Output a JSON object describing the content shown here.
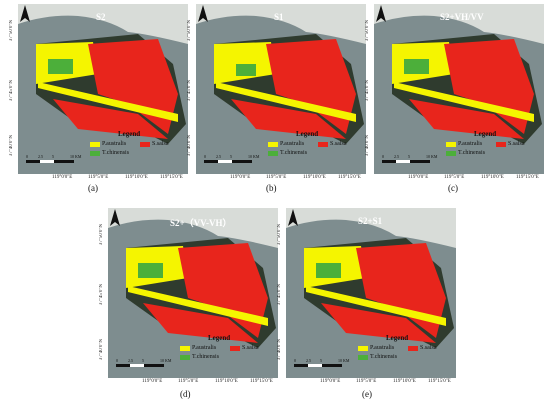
{
  "panels": [
    {
      "id": "a",
      "title": "S2",
      "caption": "(a)"
    },
    {
      "id": "b",
      "title": "S1",
      "caption": "(b)"
    },
    {
      "id": "c",
      "title": "S2+VH/VV",
      "caption": "(c)"
    },
    {
      "id": "d",
      "title": "S2+（VV-VH）",
      "caption": "(d)"
    },
    {
      "id": "e",
      "title": "S2+S1",
      "caption": "(e)"
    }
  ],
  "legend": {
    "title": "Legend",
    "items": [
      {
        "label": "P.australis",
        "color": "#f5f500"
      },
      {
        "label": "S.salsa",
        "color": "#e8251c"
      },
      {
        "label": "T.chinensis",
        "color": "#4caf3a"
      }
    ]
  },
  "axes": {
    "lat": [
      "37°50'0\"N",
      "37°45'0\"N",
      "37°40'0\"N"
    ],
    "lon": [
      "119°0'0\"E",
      "119°5'0\"E",
      "119°10'0\"E",
      "119°15'0\"E"
    ]
  },
  "scale": {
    "ticks": [
      "0",
      "2.5",
      "5",
      "10 KM"
    ]
  },
  "colors": {
    "sea": "#6f7f82",
    "land": "#2f3b2e",
    "reed": "#f5f500",
    "suaeda": "#e8251c",
    "tamarix": "#4caf3a"
  }
}
